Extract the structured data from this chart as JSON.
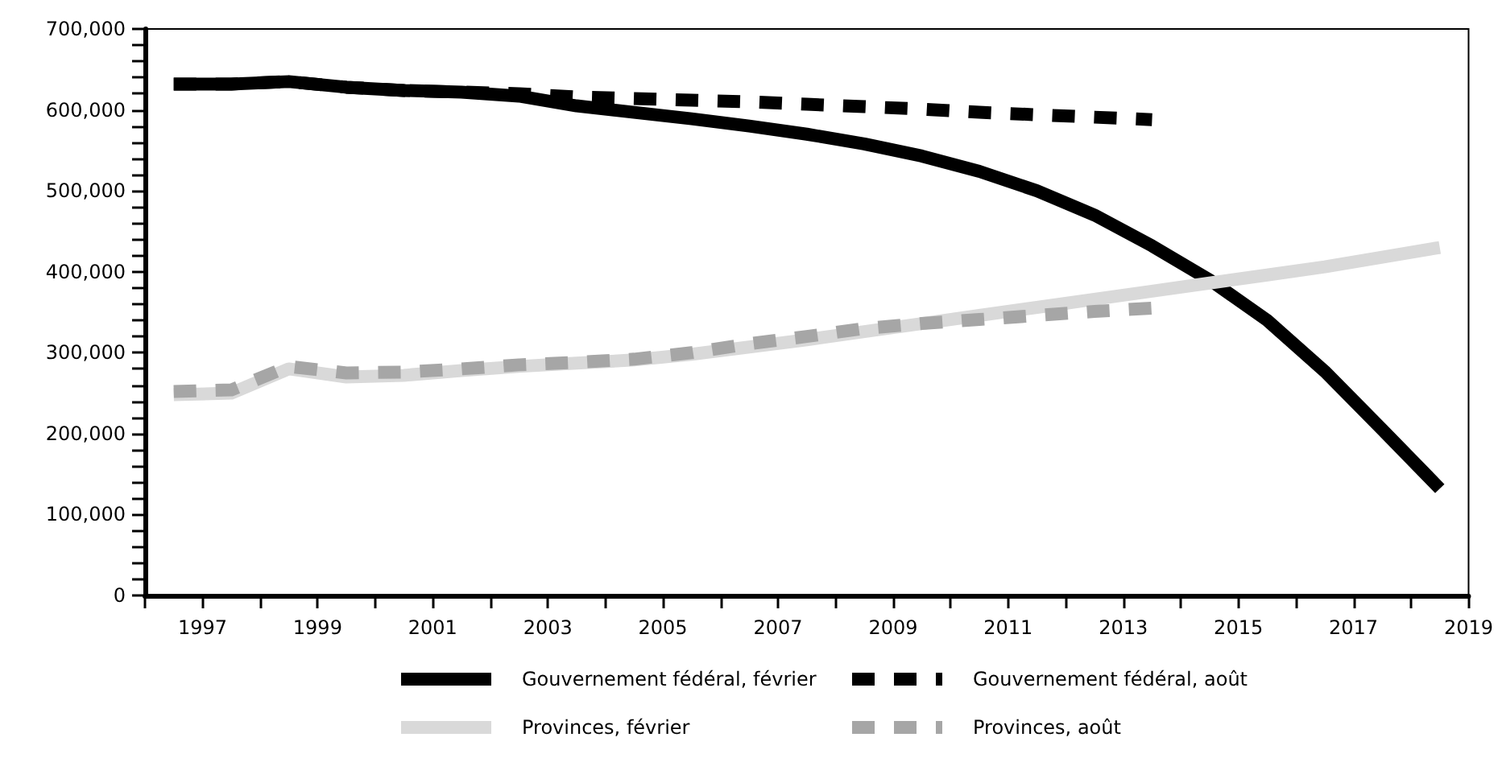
{
  "chart_data": {
    "type": "line",
    "marker": "none",
    "grid": false,
    "legend": "bottom",
    "line_style": "solid",
    "xlim": [
      1996,
      2019
    ],
    "xticks": [
      {
        "value": 1996,
        "label": null
      },
      1997,
      {
        "value": 1998,
        "label": null
      },
      1999,
      {
        "value": 2000,
        "label": null
      },
      2001,
      {
        "value": 2002,
        "label": null
      },
      2003,
      {
        "value": 2004,
        "label": null
      },
      2005,
      {
        "value": 2006,
        "label": null
      },
      2007,
      {
        "value": 2008,
        "label": null
      },
      2009,
      {
        "value": 2010,
        "label": null
      },
      2011,
      {
        "value": 2012,
        "label": null
      },
      2013,
      {
        "value": 2014,
        "label": null
      },
      2015,
      {
        "value": 2016,
        "label": null
      },
      2017,
      {
        "value": 2018,
        "label": null
      },
      2019
    ],
    "ylim": [
      0,
      700000
    ],
    "yticks": [
      0,
      {
        "value": 20000,
        "label": null
      },
      {
        "value": 40000,
        "label": null
      },
      {
        "value": 60000,
        "label": null
      },
      {
        "value": 80000,
        "label": null
      },
      {
        "value": 100000,
        "label": "100,000"
      },
      {
        "value": 120000,
        "label": null
      },
      {
        "value": 140000,
        "label": null
      },
      {
        "value": 160000,
        "label": null
      },
      {
        "value": 180000,
        "label": null
      },
      {
        "value": 200000,
        "label": "200,000"
      },
      {
        "value": 220000,
        "label": null
      },
      {
        "value": 240000,
        "label": null
      },
      {
        "value": 260000,
        "label": null
      },
      {
        "value": 280000,
        "label": null
      },
      {
        "value": 300000,
        "label": "300,000"
      },
      {
        "value": 320000,
        "label": null
      },
      {
        "value": 340000,
        "label": null
      },
      {
        "value": 360000,
        "label": null
      },
      {
        "value": 380000,
        "label": null
      },
      {
        "value": 400000,
        "label": "400,000"
      },
      {
        "value": 420000,
        "label": null
      },
      {
        "value": 440000,
        "label": null
      },
      {
        "value": 460000,
        "label": null
      },
      {
        "value": 480000,
        "label": null
      },
      {
        "value": 500000,
        "label": "500,000"
      },
      {
        "value": 520000,
        "label": null
      },
      {
        "value": 540000,
        "label": null
      },
      {
        "value": 560000,
        "label": null
      },
      {
        "value": 580000,
        "label": null
      },
      {
        "value": 600000,
        "label": "600,000"
      },
      {
        "value": 620000,
        "label": null
      },
      {
        "value": 640000,
        "label": null
      },
      {
        "value": 660000,
        "label": null
      },
      {
        "value": 680000,
        "label": null
      },
      {
        "value": 700000,
        "label": "700,000"
      }
    ],
    "series": [
      {
        "name": "Gouvernement fédéral, février",
        "color": "#000000",
        "x": [
          1996.5,
          1997.5,
          1998.5,
          1999.5,
          2000.5,
          2001.5,
          2002.5,
          2003.5,
          2004.5,
          2005.5,
          2006.5,
          2007.5,
          2008.5,
          2009.5,
          2010.5,
          2011.5,
          2012.5,
          2013.5,
          2014.5,
          2015.5,
          2016.5,
          2017.5,
          2018.5
        ],
        "values": [
          632000,
          632000,
          635000,
          628000,
          624000,
          622000,
          617000,
          605000,
          597000,
          589000,
          580000,
          570000,
          558000,
          543000,
          524000,
          500000,
          470000,
          432000,
          390000,
          340000,
          277000,
          205000,
          132000
        ]
      },
      {
        "name": "Gouvernement fédéral, août",
        "color": "#000000",
        "line_style": "dashed",
        "x": [
          1996.5,
          1997.5,
          1998.5,
          1999.5,
          2000.5,
          2001.5,
          2002.5,
          2003.5,
          2004.5,
          2005.5,
          2006.5,
          2007.5,
          2008.5,
          2009.5,
          2010.5,
          2011.5,
          2012.5,
          2013.5
        ],
        "values": [
          632000,
          632000,
          635000,
          628000,
          624000,
          622000,
          620000,
          616000,
          614000,
          612000,
          610000,
          607000,
          604000,
          601000,
          597000,
          594000,
          591000,
          588000
        ]
      },
      {
        "name": "Provinces, février",
        "color": "#d9d9d9",
        "x": [
          1996.5,
          1997.5,
          1998.5,
          1999.5,
          2000.5,
          2001.5,
          2002.5,
          2003.5,
          2004.5,
          2005.5,
          2006.5,
          2007.5,
          2008.5,
          2009.5,
          2010.5,
          2011.5,
          2012.5,
          2013.5,
          2014.5,
          2015.5,
          2016.5,
          2017.5,
          2018.5
        ],
        "values": [
          248000,
          250000,
          280000,
          270000,
          272000,
          278000,
          283000,
          287000,
          291000,
          298000,
          307000,
          316000,
          326000,
          336000,
          346000,
          356000,
          366000,
          376000,
          386000,
          396000,
          406000,
          418000,
          430000
        ]
      },
      {
        "name": "Provinces, août",
        "color": "#a6a6a6",
        "line_style": "dashed",
        "x": [
          1996.5,
          1997.5,
          1998.5,
          1999.5,
          2000.5,
          2001.5,
          2002.5,
          2003.5,
          2004.5,
          2005.5,
          2006.5,
          2007.5,
          2008.5,
          2009.5,
          2010.5,
          2011.5,
          2012.5,
          2013.5
        ],
        "values": [
          252000,
          254000,
          283000,
          275000,
          276000,
          280000,
          285000,
          288000,
          292000,
          300000,
          311000,
          320000,
          330000,
          336000,
          341000,
          346000,
          351000,
          355000
        ]
      }
    ]
  }
}
